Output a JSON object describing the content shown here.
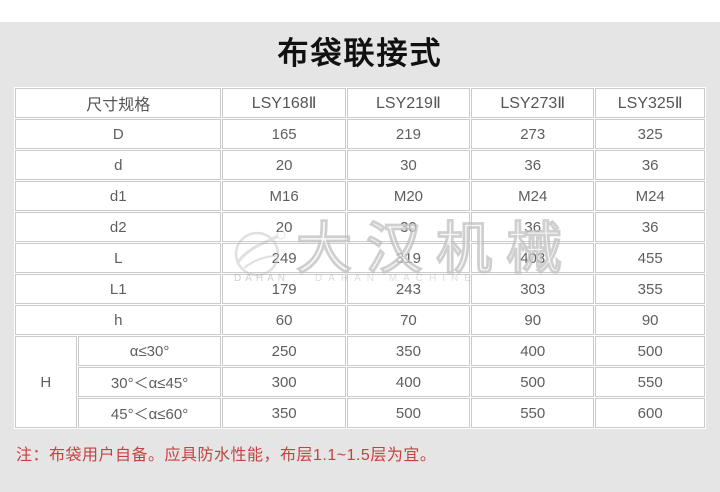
{
  "title": "布袋联接式",
  "watermark": {
    "cn": "大汉机械",
    "en_left": "DAHAN",
    "en_right": "DAHAN MACHINE"
  },
  "table": {
    "header": {
      "label": "尺寸规格",
      "models": [
        "LSY168Ⅱ",
        "LSY219Ⅱ",
        "LSY273Ⅱ",
        "LSY325Ⅱ"
      ]
    },
    "rows": [
      {
        "label": "D",
        "values": [
          "165",
          "219",
          "273",
          "325"
        ]
      },
      {
        "label": "d",
        "values": [
          "20",
          "30",
          "36",
          "36"
        ]
      },
      {
        "label": "d1",
        "values": [
          "M16",
          "M20",
          "M24",
          "M24"
        ]
      },
      {
        "label": "d2",
        "values": [
          "20",
          "30",
          "36",
          "36"
        ]
      },
      {
        "label": "L",
        "values": [
          "249",
          "319",
          "403",
          "455"
        ]
      },
      {
        "label": "L1",
        "values": [
          "179",
          "243",
          "303",
          "355"
        ]
      },
      {
        "label": "h",
        "values": [
          "60",
          "70",
          "90",
          "90"
        ]
      }
    ],
    "h_group": {
      "label": "H",
      "rows": [
        {
          "condition": "α≤30°",
          "values": [
            "250",
            "350",
            "400",
            "500"
          ]
        },
        {
          "condition": "30°＜α≤45°",
          "values": [
            "300",
            "400",
            "500",
            "550"
          ]
        },
        {
          "condition": "45°＜α≤60°",
          "values": [
            "350",
            "500",
            "550",
            "600"
          ]
        }
      ]
    }
  },
  "note": "注：布袋用户自备。应具防水性能，布层1.1~1.5层为宜。",
  "colors": {
    "page_bg": "#e5e5e5",
    "cell_border": "#cbcbcb",
    "cell_text": "#5e5e5e",
    "empty_cell_bg": "#f1f1f1",
    "note_red": "#c64141",
    "title_black": "#111111"
  }
}
